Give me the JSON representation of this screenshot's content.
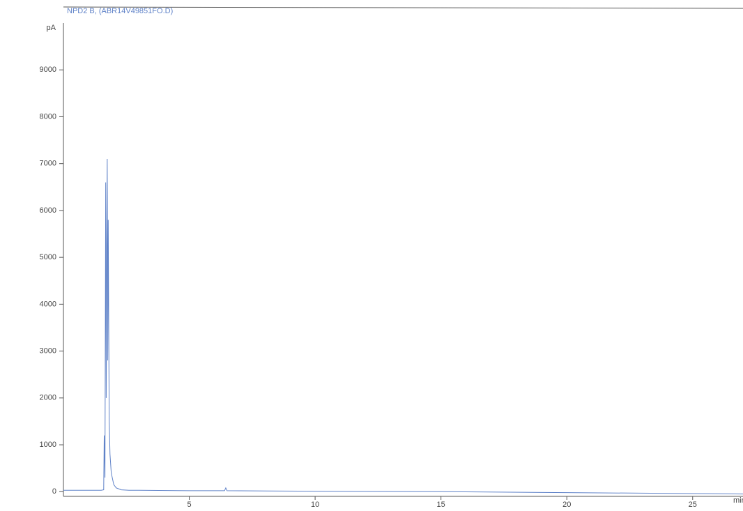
{
  "chart_data": {
    "type": "line",
    "title": "NPD2 B, (ABR14V49851FO.D)",
    "ylabel": "pA",
    "xlabel": "min",
    "x": [
      0,
      1.5,
      1.6,
      1.62,
      1.65,
      1.68,
      1.7,
      1.72,
      1.74,
      1.76,
      1.78,
      1.8,
      1.82,
      1.85,
      1.9,
      2.0,
      2.1,
      2.3,
      2.6,
      3,
      5,
      6.4,
      6.45,
      6.5,
      10,
      15,
      20,
      25,
      27
    ],
    "series": [
      {
        "color": "#5f82c8",
        "values": [
          30,
          30,
          40,
          1200,
          300,
          6600,
          2000,
          5200,
          7100,
          2800,
          5800,
          3500,
          1500,
          800,
          400,
          150,
          80,
          40,
          30,
          30,
          20,
          20,
          80,
          20,
          10,
          0,
          -20,
          -40,
          -50
        ]
      }
    ],
    "xlim": [
      0,
      27
    ],
    "ylim": [
      -100,
      10000
    ],
    "xticks": [
      5,
      10,
      15,
      20,
      25
    ],
    "yticks": [
      0,
      1000,
      2000,
      3000,
      4000,
      5000,
      6000,
      7000,
      8000,
      9000
    ]
  }
}
